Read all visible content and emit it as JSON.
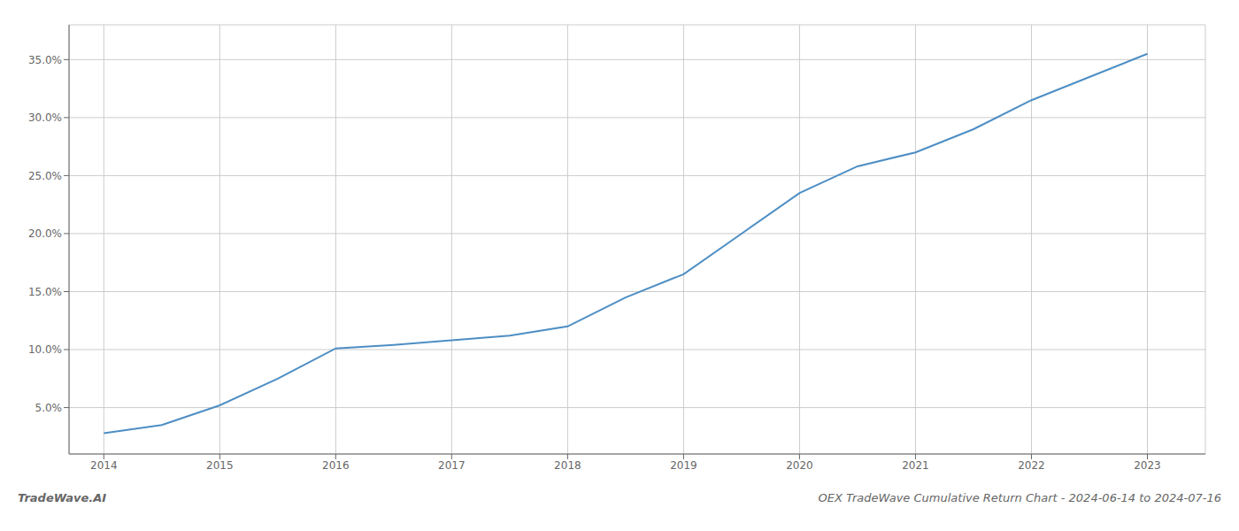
{
  "chart_data": {
    "type": "line",
    "title": "OEX TradeWave Cumulative Return Chart - 2024-06-14 to 2024-07-16",
    "annotations": [
      "TradeWave.AI"
    ],
    "color": "#4d8ec4",
    "grid": true,
    "x": [
      2014.0,
      2014.5,
      2015.0,
      2015.5,
      2016.0,
      2016.5,
      2017.0,
      2017.5,
      2018.0,
      2018.5,
      2019.0,
      2019.5,
      2020.0,
      2020.5,
      2021.0,
      2021.5,
      2022.0,
      2022.5,
      2023.0
    ],
    "values": [
      2.8,
      3.5,
      5.2,
      7.5,
      10.1,
      10.4,
      10.8,
      11.2,
      12.0,
      14.5,
      16.5,
      20.0,
      23.5,
      25.8,
      27.0,
      29.0,
      31.5,
      33.5,
      35.5
    ],
    "xlim": [
      2013.7,
      2023.5
    ],
    "xticks": [
      2014,
      2015,
      2016,
      2017,
      2018,
      2019,
      2020,
      2021,
      2022,
      2023
    ],
    "ylim": [
      1.0,
      38.0
    ],
    "yticks": [
      {
        "value": 5.0,
        "label": "5.0%"
      },
      {
        "value": 10.0,
        "label": "10.0%"
      },
      {
        "value": 15.0,
        "label": "15.0%"
      },
      {
        "value": 20.0,
        "label": "20.0%"
      },
      {
        "value": 25.0,
        "label": "25.0%"
      },
      {
        "value": 30.0,
        "label": "30.0%"
      },
      {
        "value": 35.0,
        "label": "35.0%"
      }
    ]
  }
}
